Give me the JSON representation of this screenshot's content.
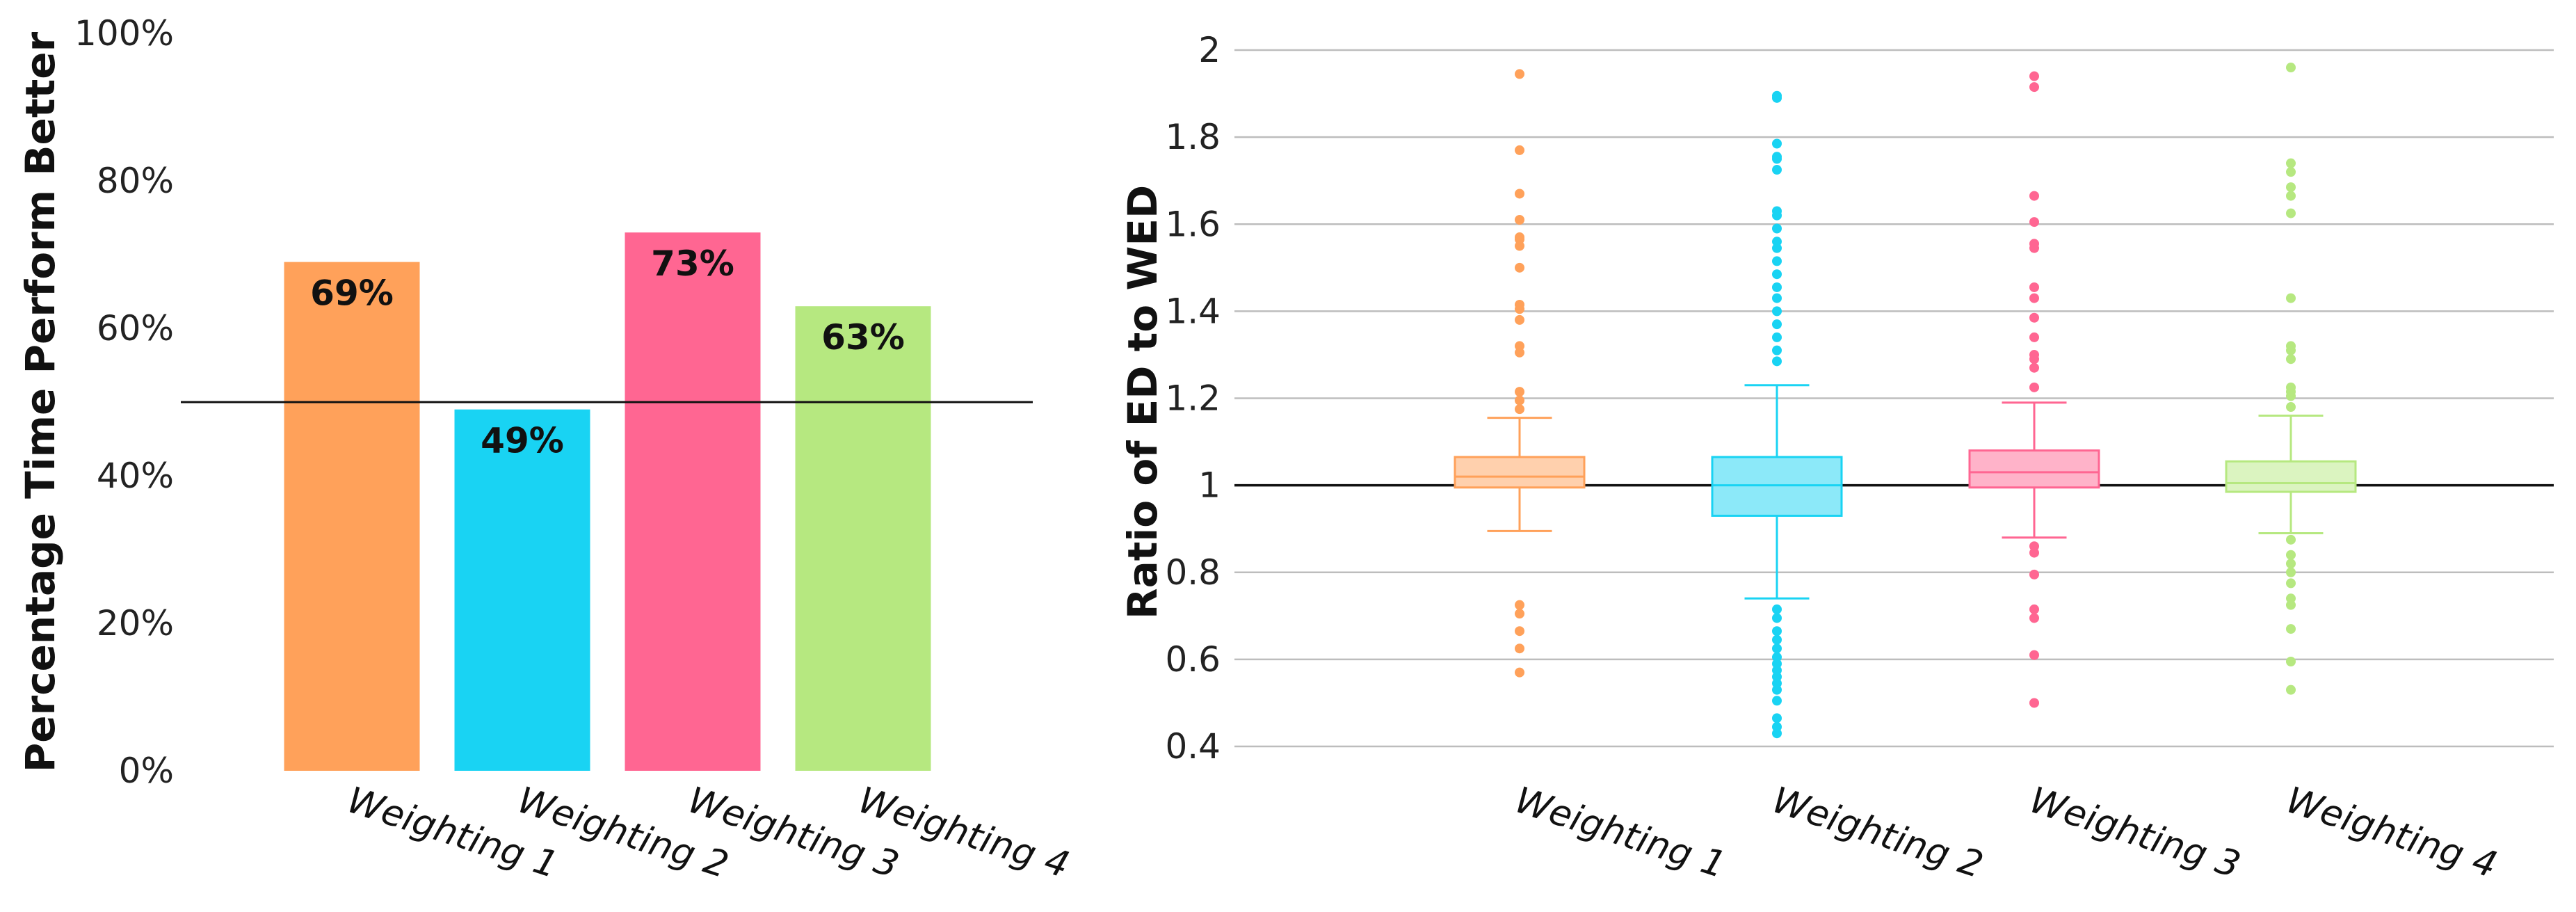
{
  "chart_data": [
    {
      "type": "bar",
      "categories": [
        "Weighting 1",
        "Weighting 2",
        "Weighting 3",
        "Weighting 4"
      ],
      "values": [
        69,
        49,
        73,
        63
      ],
      "value_labels": [
        "69%",
        "49%",
        "73%",
        "63%"
      ],
      "colors": [
        "#FFA15A",
        "#19D3F3",
        "#FF6692",
        "#B6E880"
      ],
      "ylabel": "Percentage Time Perform Better",
      "ylim": [
        0,
        100
      ],
      "yticks": [
        "0%",
        "20%",
        "40%",
        "60%",
        "80%",
        "100%"
      ],
      "reference_line": 50,
      "grid": false
    },
    {
      "type": "box",
      "categories": [
        "Weighting 1",
        "Weighting 2",
        "Weighting 3",
        "Weighting 4"
      ],
      "colors": [
        "#FFA15A",
        "#19D3F3",
        "#FF6692",
        "#B6E880"
      ],
      "ylabel": "Ratio of ED to WED",
      "ylim": [
        0.4,
        2.0
      ],
      "yticks": [
        "0.4",
        "0.6",
        "0.8",
        "1",
        "1.2",
        "1.4",
        "1.6",
        "1.8",
        "2"
      ],
      "reference_line": 1.0,
      "grid": true,
      "boxes": [
        {
          "name": "Weighting 1",
          "lower_fence": 0.895,
          "q1": 0.995,
          "median": 1.02,
          "q3": 1.065,
          "upper_fence": 1.155,
          "outliers": [
            0.57,
            0.625,
            0.665,
            0.705,
            0.725,
            1.175,
            1.195,
            1.215,
            1.305,
            1.32,
            1.38,
            1.405,
            1.415,
            1.5,
            1.55,
            1.565,
            1.57,
            1.61,
            1.67,
            1.77,
            1.945
          ]
        },
        {
          "name": "Weighting 2",
          "lower_fence": 0.74,
          "q1": 0.93,
          "median": 1.0,
          "q3": 1.065,
          "upper_fence": 1.23,
          "outliers": [
            0.43,
            0.445,
            0.465,
            0.505,
            0.53,
            0.545,
            0.56,
            0.575,
            0.59,
            0.605,
            0.625,
            0.645,
            0.665,
            0.695,
            0.715,
            1.285,
            1.31,
            1.34,
            1.37,
            1.4,
            1.43,
            1.455,
            1.485,
            1.515,
            1.545,
            1.56,
            1.59,
            1.62,
            1.63,
            1.725,
            1.75,
            1.755,
            1.785,
            1.89,
            1.895
          ]
        },
        {
          "name": "Weighting 3",
          "lower_fence": 0.88,
          "q1": 0.995,
          "median": 1.03,
          "q3": 1.08,
          "upper_fence": 1.19,
          "outliers": [
            0.5,
            0.61,
            0.695,
            0.715,
            0.795,
            0.845,
            0.86,
            1.225,
            1.27,
            1.29,
            1.3,
            1.34,
            1.385,
            1.43,
            1.455,
            1.545,
            1.555,
            1.605,
            1.665,
            1.915,
            1.94
          ]
        },
        {
          "name": "Weighting 4",
          "lower_fence": 0.89,
          "q1": 0.985,
          "median": 1.005,
          "q3": 1.055,
          "upper_fence": 1.16,
          "outliers": [
            0.53,
            0.595,
            0.67,
            0.725,
            0.74,
            0.775,
            0.8,
            0.82,
            0.84,
            0.875,
            1.18,
            1.205,
            1.215,
            1.225,
            1.29,
            1.31,
            1.32,
            1.43,
            1.625,
            1.665,
            1.685,
            1.72,
            1.74,
            1.96
          ]
        }
      ]
    }
  ]
}
